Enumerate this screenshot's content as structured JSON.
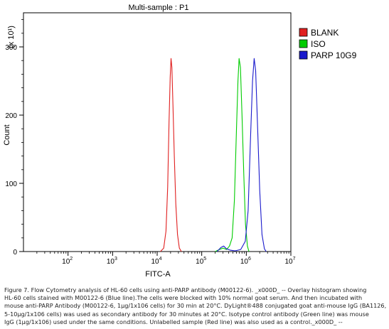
{
  "chart_data": {
    "type": "line",
    "title": "Multi-sample : P1",
    "xlabel": "FITC-A",
    "ylabel": "Count",
    "y_multiplier": "(x 10¹)",
    "x_scale": "log",
    "xlim": [
      10,
      10000000
    ],
    "ylim": [
      0,
      350
    ],
    "x_ticks": [
      100,
      1000,
      10000,
      100000,
      1000000,
      10000000
    ],
    "x_tick_labels": [
      {
        "base": "10",
        "exp": "2"
      },
      {
        "base": "10",
        "exp": "3"
      },
      {
        "base": "10",
        "exp": "4"
      },
      {
        "base": "10",
        "exp": "5"
      },
      {
        "base": "10",
        "exp": "6"
      },
      {
        "base": "10",
        "exp": "7"
      }
    ],
    "y_ticks": [
      0,
      100,
      200,
      300
    ],
    "y_tick_labels": [
      "0",
      "100",
      "200",
      "300"
    ],
    "legend_position": "right",
    "series": [
      {
        "name": "BLANK",
        "color": "#e02020",
        "points": [
          [
            11800,
            0
          ],
          [
            14000,
            5
          ],
          [
            15800,
            30
          ],
          [
            17200,
            95
          ],
          [
            18500,
            190
          ],
          [
            19600,
            255
          ],
          [
            20500,
            283
          ],
          [
            21400,
            270
          ],
          [
            22600,
            215
          ],
          [
            24200,
            140
          ],
          [
            26200,
            70
          ],
          [
            28600,
            25
          ],
          [
            31500,
            5
          ],
          [
            35000,
            0
          ]
        ]
      },
      {
        "name": "ISO",
        "color": "#00cc00",
        "points": [
          [
            200000,
            0
          ],
          [
            250000,
            3
          ],
          [
            300000,
            5
          ],
          [
            360000,
            3
          ],
          [
            420000,
            8
          ],
          [
            480000,
            20
          ],
          [
            540000,
            75
          ],
          [
            600000,
            175
          ],
          [
            650000,
            250
          ],
          [
            690000,
            283
          ],
          [
            740000,
            270
          ],
          [
            800000,
            200
          ],
          [
            880000,
            110
          ],
          [
            960000,
            40
          ],
          [
            1060000,
            8
          ],
          [
            1150000,
            0
          ]
        ]
      },
      {
        "name": "PARP 10G9",
        "color": "#1a1acc",
        "points": [
          [
            220000,
            0
          ],
          [
            270000,
            6
          ],
          [
            310000,
            8
          ],
          [
            360000,
            4
          ],
          [
            440000,
            2
          ],
          [
            560000,
            1
          ],
          [
            750000,
            3
          ],
          [
            950000,
            15
          ],
          [
            1100000,
            60
          ],
          [
            1250000,
            170
          ],
          [
            1380000,
            250
          ],
          [
            1500000,
            283
          ],
          [
            1620000,
            265
          ],
          [
            1800000,
            180
          ],
          [
            2000000,
            90
          ],
          [
            2250000,
            25
          ],
          [
            2550000,
            4
          ],
          [
            2800000,
            0
          ]
        ]
      }
    ]
  },
  "caption": {
    "lines": [
      "Figure 7. Flow Cytometry analysis of HL-60 cells using anti-PARP antibody (M00122-6). _x000D_ -- Overlay histogram showing",
      "HL-60 cells stained with M00122-6 (Blue line).The cells were blocked with 10% normal goat serum. And then incubated with",
      "mouse anti-PARP Antibody (M00122-6, 1μg/1x106 cells) for 30 min at 20°C. DyLight®488 conjugated goat anti-mouse IgG (BA1126,",
      "5-10μg/1x106 cells) was used as secondary antibody for 30 minutes at 20°C. Isotype control antibody (Green line) was mouse",
      "IgG (1μg/1x106) used under the same conditions. Unlabelled sample (Red line) was also used as a control._x000D_ --"
    ]
  }
}
